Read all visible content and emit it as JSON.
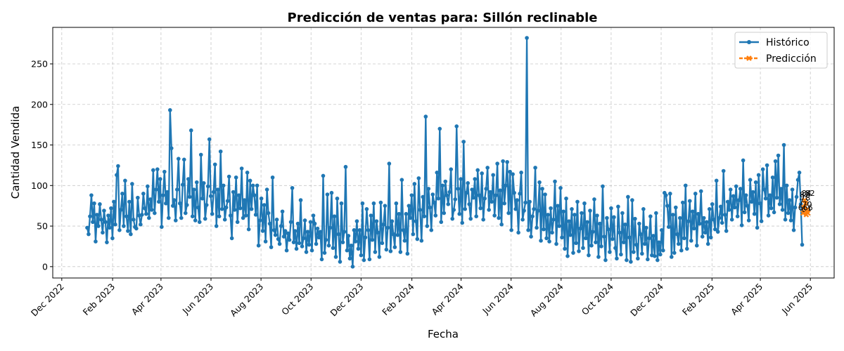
{
  "chart_data": {
    "type": "line",
    "title": "Predicción de ventas para: Sillón reclinable",
    "xlabel": "Fecha",
    "ylabel": "Cantidad Vendida",
    "ylim": [
      -14,
      295
    ],
    "xlim": [
      "2022-11-20",
      "2025-06-30"
    ],
    "yticks": [
      0,
      50,
      100,
      150,
      200,
      250
    ],
    "xticks": [
      {
        "date": "2022-12-01",
        "label": "Dec 2022"
      },
      {
        "date": "2023-02-01",
        "label": "Feb 2023"
      },
      {
        "date": "2023-04-01",
        "label": "Apr 2023"
      },
      {
        "date": "2023-06-01",
        "label": "Jun 2023"
      },
      {
        "date": "2023-08-01",
        "label": "Aug 2023"
      },
      {
        "date": "2023-10-01",
        "label": "Oct 2023"
      },
      {
        "date": "2023-12-01",
        "label": "Dec 2023"
      },
      {
        "date": "2024-02-01",
        "label": "Feb 2024"
      },
      {
        "date": "2024-04-01",
        "label": "Apr 2024"
      },
      {
        "date": "2024-06-01",
        "label": "Jun 2024"
      },
      {
        "date": "2024-08-01",
        "label": "Aug 2024"
      },
      {
        "date": "2024-10-01",
        "label": "Oct 2024"
      },
      {
        "date": "2024-12-01",
        "label": "Dec 2024"
      },
      {
        "date": "2025-02-01",
        "label": "Feb 2025"
      },
      {
        "date": "2025-04-01",
        "label": "Apr 2025"
      },
      {
        "date": "2025-06-01",
        "label": "Jun 2025"
      }
    ],
    "grid": true,
    "legend_position": "top-right",
    "series": [
      {
        "name": "Histórico",
        "color": "#1f77b4",
        "marker": "circle",
        "start_date": "2023-01-01",
        "end_date": "2025-05-22",
        "values": [
          48,
          40,
          62,
          88,
          55,
          78,
          31,
          64,
          50,
          77,
          58,
          42,
          69,
          55,
          30,
          63,
          48,
          72,
          35,
          80,
          52,
          113,
          124,
          45,
          70,
          90,
          50,
          106,
          62,
          44,
          80,
          40,
          102,
          58,
          49,
          47,
          85,
          63,
          52,
          64,
          90,
          72,
          65,
          99,
          60,
          83,
          70,
          119,
          66,
          95,
          120,
          80,
          108,
          49,
          88,
          117,
          78,
          92,
          60,
          193,
          146,
          75,
          82,
          57,
          95,
          133,
          78,
          60,
          101,
          132,
          66,
          76,
          108,
          86,
          168,
          62,
          95,
          57,
          104,
          73,
          55,
          138,
          84,
          103,
          59,
          76,
          99,
          157,
          87,
          65,
          92,
          126,
          50,
          95,
          62,
          142,
          71,
          100,
          58,
          73,
          81,
          111,
          63,
          35,
          92,
          70,
          110,
          55,
          88,
          72,
          121,
          60,
          82,
          63,
          116,
          46,
          106,
          71,
          100,
          88,
          64,
          100,
          26,
          57,
          84,
          44,
          76,
          31,
          95,
          66,
          53,
          24,
          110,
          45,
          39,
          58,
          34,
          28,
          50,
          68,
          37,
          44,
          20,
          41,
          33,
          55,
          97,
          30,
          44,
          22,
          53,
          29,
          82,
          25,
          35,
          57,
          18,
          43,
          27,
          55,
          20,
          63,
          53,
          28,
          47,
          36,
          43,
          9,
          112,
          17,
          33,
          89,
          26,
          48,
          91,
          23,
          62,
          12,
          84,
          40,
          6,
          78,
          30,
          43,
          123,
          20,
          38,
          10,
          26,
          0,
          45,
          31,
          56,
          22,
          45,
          14,
          78,
          8,
          36,
          71,
          45,
          9,
          63,
          33,
          78,
          18,
          56,
          42,
          12,
          79,
          29,
          52,
          75,
          21,
          48,
          127,
          19,
          56,
          40,
          24,
          78,
          39,
          65,
          18,
          107,
          45,
          32,
          65,
          16,
          75,
          60,
          88,
          40,
          102,
          56,
          34,
          109,
          70,
          32,
          86,
          62,
          185,
          50,
          96,
          73,
          45,
          89,
          79,
          63,
          116,
          84,
          170,
          55,
          100,
          66,
          105,
          88,
          77,
          92,
          120,
          59,
          70,
          83,
          173,
          96,
          65,
          108,
          54,
          154,
          71,
          91,
          103,
          77,
          59,
          95,
          85,
          108,
          62,
          119,
          88,
          72,
          115,
          58,
          84,
          96,
          122,
          70,
          92,
          80,
          113,
          63,
          88,
          127,
          60,
          94,
          52,
          130,
          78,
          100,
          129,
          66,
          117,
          45,
          114,
          91,
          71,
          82,
          42,
          90,
          116,
          58,
          69,
          79,
          282,
          45,
          80,
          37,
          62,
          71,
          122,
          48,
          69,
          104,
          32,
          96,
          46,
          89,
          35,
          64,
          31,
          72,
          42,
          58,
          105,
          28,
          75,
          50,
          97,
          36,
          68,
          22,
          84,
          13,
          56,
          39,
          71,
          17,
          64,
          29,
          80,
          19,
          47,
          66,
          23,
          78,
          35,
          55,
          14,
          69,
          26,
          43,
          83,
          30,
          63,
          12,
          53,
          25,
          99,
          37,
          8,
          60,
          46,
          18,
          72,
          34,
          61,
          23,
          10,
          74,
          42,
          15,
          66,
          30,
          52,
          8,
          86,
          36,
          6,
          82,
          18,
          59,
          27,
          10,
          53,
          40,
          16,
          71,
          28,
          48,
          9,
          35,
          62,
          14,
          38,
          13,
          66,
          8,
          30,
          15,
          45,
          20,
          91,
          88,
          75,
          49,
          90,
          12,
          64,
          17,
          73,
          40,
          28,
          60,
          20,
          79,
          35,
          100,
          22,
          56,
          81,
          32,
          68,
          47,
          90,
          26,
          65,
          53,
          93,
          37,
          60,
          42,
          55,
          28,
          71,
          36,
          77,
          58,
          46,
          106,
          43,
          60,
          74,
          54,
          118,
          64,
          44,
          80,
          70,
          95,
          58,
          87,
          73,
          99,
          62,
          82,
          96,
          51,
          131,
          67,
          88,
          75,
          57,
          107,
          80,
          92,
          65,
          104,
          48,
          113,
          78,
          56,
          120,
          95,
          84,
          125,
          63,
          88,
          72,
          110,
          67,
          130,
          85,
          137,
          77,
          96,
          70,
          150,
          58,
          100,
          66,
          82,
          57,
          95,
          45,
          73,
          86,
          107,
          116,
          77,
          27
        ]
      },
      {
        "name": "Predicción",
        "color": "#ff7f0e",
        "marker": "x",
        "start_date": "2025-05-23",
        "end_date": "2025-05-29",
        "values": [
          66,
          73,
          82,
          78,
          64,
          70,
          66
        ],
        "labels": [
          "66",
          "73",
          "82",
          "78",
          "64",
          "70",
          "66"
        ],
        "top_labels": [
          "84",
          "82"
        ]
      }
    ]
  }
}
